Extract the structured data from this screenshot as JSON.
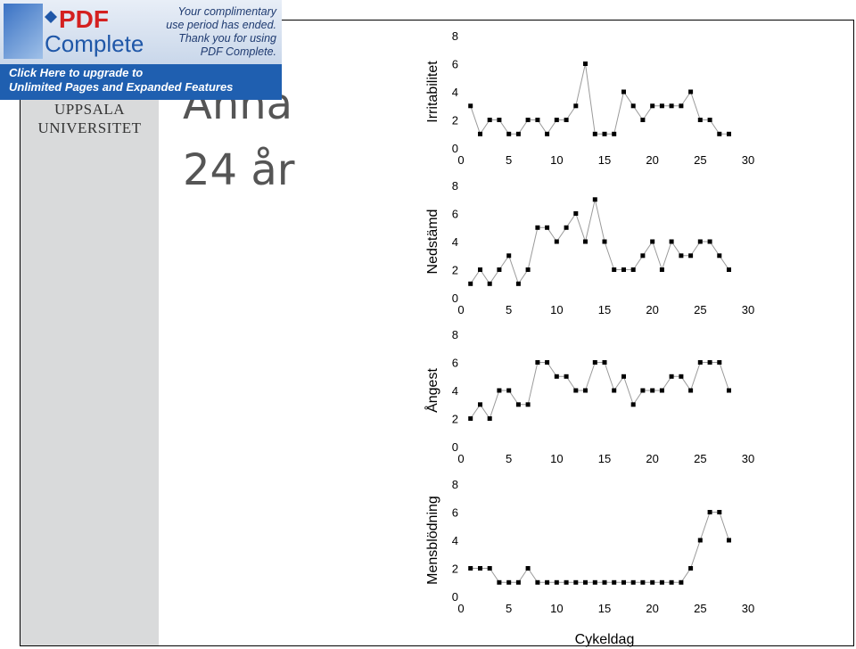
{
  "sidebar": {
    "university_line1": "UPPSALA",
    "university_line2": "UNIVERSITET"
  },
  "slide": {
    "name": "Anna",
    "age": "24 år"
  },
  "banner": {
    "brand_pdf": "PDF",
    "brand_complete": "Complete",
    "message_lines": [
      "Your complimentary",
      "use period has ended.",
      "Thank you for using",
      "PDF Complete."
    ],
    "cta_line1": "Click Here to upgrade to",
    "cta_line2": "Unlimited Pages and Expanded Features"
  },
  "chart_data": [
    {
      "type": "line",
      "ylabel": "Irritabilitet",
      "xlim": [
        0,
        30
      ],
      "ylim": [
        0,
        8
      ],
      "xticks": [
        0,
        5,
        10,
        15,
        20,
        25,
        30
      ],
      "yticks": [
        0,
        2,
        4,
        6,
        8
      ],
      "x": [
        1,
        2,
        3,
        4,
        5,
        6,
        7,
        8,
        9,
        10,
        11,
        12,
        13,
        14,
        15,
        16,
        17,
        18,
        19,
        20,
        21,
        22,
        23,
        24,
        25,
        26,
        27,
        28
      ],
      "values": [
        3,
        1,
        2,
        2,
        1,
        1,
        2,
        2,
        1,
        2,
        2,
        3,
        6,
        1,
        1,
        1,
        4,
        3,
        2,
        3,
        3,
        3,
        3,
        4,
        2,
        2,
        1,
        1
      ]
    },
    {
      "type": "line",
      "ylabel": "Nedstämd",
      "xlim": [
        0,
        30
      ],
      "ylim": [
        0,
        8
      ],
      "xticks": [
        0,
        5,
        10,
        15,
        20,
        25,
        30
      ],
      "yticks": [
        0,
        2,
        4,
        6,
        8
      ],
      "x": [
        1,
        2,
        3,
        4,
        5,
        6,
        7,
        8,
        9,
        10,
        11,
        12,
        13,
        14,
        15,
        16,
        17,
        18,
        19,
        20,
        21,
        22,
        23,
        24,
        25,
        26,
        27,
        28
      ],
      "values": [
        1,
        2,
        1,
        2,
        3,
        1,
        2,
        5,
        5,
        4,
        5,
        6,
        4,
        7,
        4,
        2,
        2,
        2,
        3,
        4,
        2,
        4,
        3,
        3,
        4,
        4,
        3,
        2
      ]
    },
    {
      "type": "line",
      "ylabel": "Ångest",
      "xlim": [
        0,
        30
      ],
      "ylim": [
        0,
        8
      ],
      "xticks": [
        0,
        5,
        10,
        15,
        20,
        25,
        30
      ],
      "yticks": [
        0,
        2,
        4,
        6,
        8
      ],
      "x": [
        1,
        2,
        3,
        4,
        5,
        6,
        7,
        8,
        9,
        10,
        11,
        12,
        13,
        14,
        15,
        16,
        17,
        18,
        19,
        20,
        21,
        22,
        23,
        24,
        25,
        26,
        27,
        28
      ],
      "values": [
        2,
        3,
        2,
        4,
        4,
        3,
        3,
        6,
        6,
        5,
        5,
        4,
        4,
        6,
        6,
        4,
        5,
        3,
        4,
        4,
        4,
        5,
        5,
        4,
        6,
        6,
        6,
        4
      ]
    },
    {
      "type": "line",
      "ylabel": "Mensblödning",
      "xlabel": "Cykeldag",
      "xlim": [
        0,
        30
      ],
      "ylim": [
        0,
        8
      ],
      "xticks": [
        0,
        5,
        10,
        15,
        20,
        25,
        30
      ],
      "yticks": [
        0,
        2,
        4,
        6,
        8
      ],
      "x": [
        1,
        2,
        3,
        4,
        5,
        6,
        7,
        8,
        9,
        10,
        11,
        12,
        13,
        14,
        15,
        16,
        17,
        18,
        19,
        20,
        21,
        22,
        23,
        24,
        25,
        26,
        27,
        28
      ],
      "values": [
        2,
        2,
        2,
        1,
        1,
        1,
        2,
        1,
        1,
        1,
        1,
        1,
        1,
        1,
        1,
        1,
        1,
        1,
        1,
        1,
        1,
        1,
        1,
        2,
        4,
        6,
        6,
        4
      ]
    }
  ]
}
